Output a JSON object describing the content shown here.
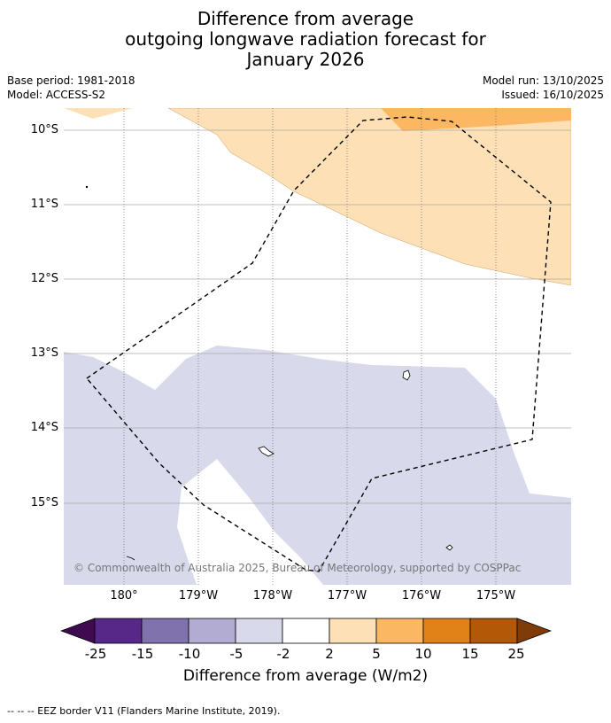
{
  "title": {
    "line1": "Difference from average",
    "line2": "outgoing longwave radiation forecast for",
    "line3": "January 2026"
  },
  "meta": {
    "base_period": "Base period: 1981-2018",
    "model": "Model: ACCESS-S2",
    "model_run": "Model run: 13/10/2025",
    "issued": "Issued: 16/10/2025"
  },
  "map": {
    "lat_labels": [
      "10°S",
      "11°S",
      "12°S",
      "13°S",
      "14°S",
      "15°S"
    ],
    "lon_labels": [
      "180°",
      "179°W",
      "178°W",
      "177°W",
      "176°W",
      "175°W"
    ],
    "copyright": "© Commonwealth of Australia 2025, Bureau of Meteorology, supported by COSPPac",
    "colors": {
      "neg_2_5": "#d8d9ea",
      "pos_2_5": "#fde0b6",
      "pos_5_10": "#fbb762",
      "eez_line": "#000000",
      "gridline": "#aaaaaa"
    }
  },
  "colorbar": {
    "title": "Difference from average (W/m2)",
    "ticks": [
      "-25",
      "-15",
      "-10",
      "-5",
      "-2",
      "2",
      "5",
      "10",
      "15",
      "25"
    ],
    "bins": [
      {
        "range": "below -25",
        "color": "#3f0a4f"
      },
      {
        "range": "-25 to -15",
        "color": "#582889"
      },
      {
        "range": "-15 to -10",
        "color": "#8072ac"
      },
      {
        "range": "-10 to -5",
        "color": "#b2abd2"
      },
      {
        "range": "-5 to -2",
        "color": "#d8d9ea"
      },
      {
        "range": "-2 to 2",
        "color": "#ffffff"
      },
      {
        "range": "2 to 5",
        "color": "#fde0b6"
      },
      {
        "range": "5 to 10",
        "color": "#fbb762"
      },
      {
        "range": "10 to 15",
        "color": "#e08218"
      },
      {
        "range": "15 to 25",
        "color": "#b35806"
      },
      {
        "range": "above 25",
        "color": "#7f3b08"
      }
    ]
  },
  "footnote": "--  --  -- EEZ border V11 (Flanders Marine Institute, 2019)."
}
